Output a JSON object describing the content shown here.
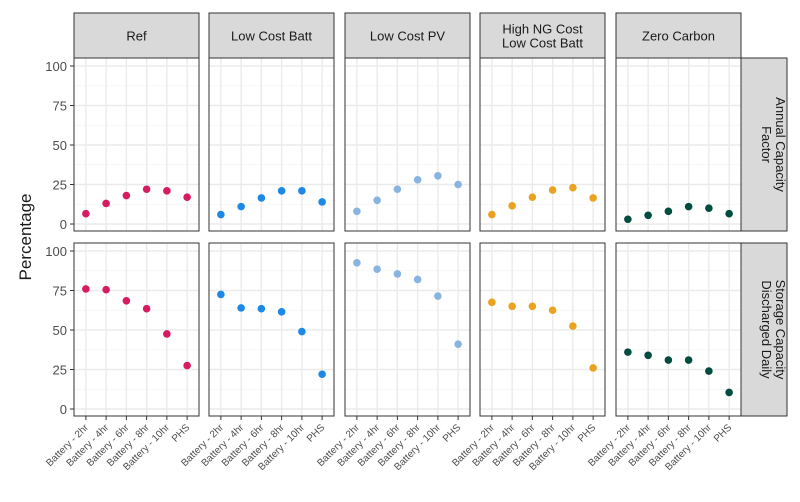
{
  "chart_data": {
    "type": "scatter",
    "title": "",
    "xlabel": "",
    "ylabel": "Percentage",
    "ylim": [
      0,
      100
    ],
    "yticks": [
      0,
      25,
      50,
      75,
      100
    ],
    "grid": true,
    "categories": [
      "Battery - 2hr",
      "Battery - 4hr",
      "Battery - 6hr",
      "Battery - 8hr",
      "Battery - 10hr",
      "PHS"
    ],
    "facet_columns": [
      {
        "label": "Ref",
        "color": "#D81B60"
      },
      {
        "label": "Low Cost Batt",
        "color": "#1E88E5"
      },
      {
        "label": "Low Cost PV",
        "color": "#8AB4E0"
      },
      {
        "label": "High NG Cost\nLow Cost Batt",
        "label_lines": [
          "High NG Cost",
          "Low Cost Batt"
        ],
        "color": "#E9A320"
      },
      {
        "label": "Zero Carbon",
        "color": "#004D40"
      }
    ],
    "facet_rows": [
      {
        "label": "Annual Capacity Factor",
        "label_lines": [
          "Annual Capacity",
          "Factor"
        ]
      },
      {
        "label": "Storage Capacity Discharged Daily",
        "label_lines": [
          "Storage Capacity",
          "Discharged Daily"
        ]
      }
    ],
    "series": [
      {
        "column": "Ref",
        "row": "Annual Capacity Factor",
        "values": [
          6.5,
          13,
          18,
          22,
          21,
          17
        ]
      },
      {
        "column": "Low Cost Batt",
        "row": "Annual Capacity Factor",
        "values": [
          6,
          11,
          16.5,
          21,
          21,
          14
        ]
      },
      {
        "column": "Low Cost PV",
        "row": "Annual Capacity Factor",
        "values": [
          8,
          15,
          22,
          28,
          30.5,
          25
        ]
      },
      {
        "column": "High NG Cost\nLow Cost Batt",
        "row": "Annual Capacity Factor",
        "values": [
          6,
          11.5,
          17,
          21.5,
          23,
          16.5
        ]
      },
      {
        "column": "Zero Carbon",
        "row": "Annual Capacity Factor",
        "values": [
          3,
          5.5,
          8,
          11,
          10,
          6.5
        ]
      },
      {
        "column": "Ref",
        "row": "Storage Capacity Discharged Daily",
        "values": [
          76,
          75.5,
          68.5,
          63.5,
          47.5,
          27.5
        ]
      },
      {
        "column": "Low Cost Batt",
        "row": "Storage Capacity Discharged Daily",
        "values": [
          72.5,
          64,
          63.5,
          61.5,
          49,
          22
        ]
      },
      {
        "column": "Low Cost PV",
        "row": "Storage Capacity Discharged Daily",
        "values": [
          92.5,
          88.5,
          85.5,
          82,
          71.5,
          41
        ]
      },
      {
        "column": "High NG Cost\nLow Cost Batt",
        "row": "Storage Capacity Discharged Daily",
        "values": [
          67.5,
          65,
          65,
          62.5,
          52.5,
          26
        ]
      },
      {
        "column": "Zero Carbon",
        "row": "Storage Capacity Discharged Daily",
        "values": [
          36,
          34,
          31,
          31,
          24,
          10.5
        ]
      }
    ]
  }
}
